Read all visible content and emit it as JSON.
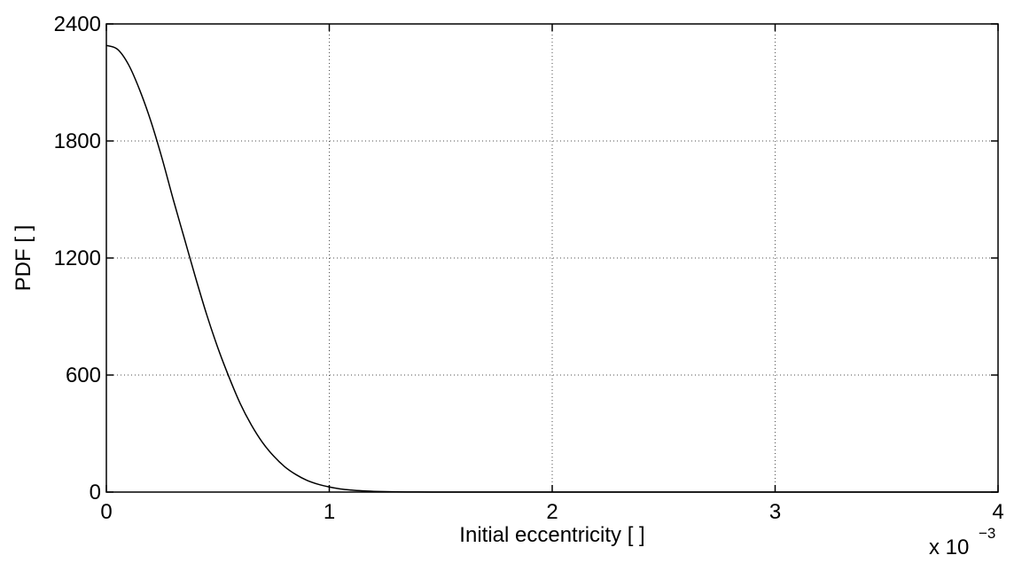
{
  "chart_data": {
    "type": "line",
    "xlabel": "Initial eccentricity [ ]",
    "ylabel": "PDF [ ]",
    "x_multiplier_label": {
      "base": "x 10",
      "exponent": "−3"
    },
    "xlim": [
      0,
      4
    ],
    "ylim": [
      0,
      2400
    ],
    "x_ticks": [
      0,
      1,
      2,
      3,
      4
    ],
    "y_ticks": [
      0,
      600,
      1200,
      1800,
      2400
    ],
    "x_tick_labels": [
      "0",
      "1",
      "2",
      "3",
      "4"
    ],
    "y_tick_labels": [
      "0",
      "600",
      "1200",
      "1800",
      "2400"
    ],
    "grid": true,
    "series": [
      {
        "x": [
          0,
          0.05,
          0.1,
          0.15,
          0.2,
          0.25,
          0.3,
          0.35,
          0.4,
          0.45,
          0.5,
          0.55,
          0.6,
          0.65,
          0.7,
          0.75,
          0.8,
          0.85,
          0.9,
          0.95,
          1.0,
          1.05,
          1.1,
          1.15,
          1.2,
          1.25,
          1.3,
          1.35,
          1.4,
          1.5,
          1.6,
          1.8,
          2.0,
          2.5,
          3.0,
          3.5,
          4.0
        ],
        "y": [
          2290,
          2270,
          2190,
          2060,
          1900,
          1710,
          1500,
          1300,
          1100,
          910,
          740,
          590,
          455,
          345,
          255,
          185,
          130,
          90,
          60,
          40,
          26,
          16,
          10,
          6,
          3.5,
          2,
          1.2,
          0.7,
          0.4,
          0.1,
          0.03,
          0,
          0,
          0,
          0,
          0,
          0
        ]
      }
    ]
  }
}
